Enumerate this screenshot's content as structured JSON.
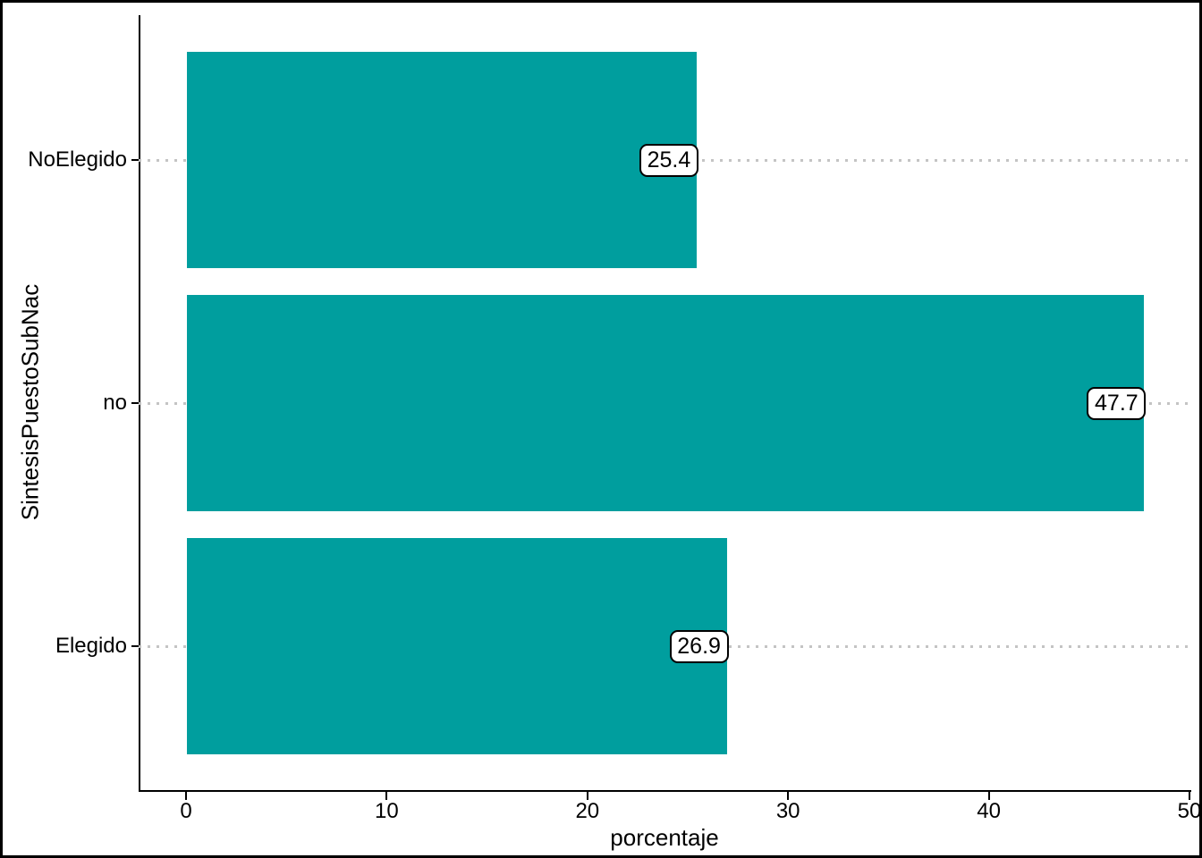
{
  "chart_data": {
    "type": "bar",
    "orientation": "horizontal",
    "title": "",
    "xlabel": "porcentaje",
    "ylabel": "SintesisPuestoSubNac",
    "xlim": [
      0,
      50
    ],
    "xticks": [
      0,
      10,
      20,
      30,
      40,
      50
    ],
    "grid": "dotted-horizontal-at-categories",
    "legend": "none",
    "bar_color": "#009E9E",
    "categories": [
      "NoElegido",
      "no",
      "Elegido"
    ],
    "values": [
      25.4,
      47.7,
      26.9
    ],
    "series": [
      {
        "category": "NoElegido",
        "value": 25.4,
        "value_label": "25.4"
      },
      {
        "category": "no",
        "value": 47.7,
        "value_label": "47.7"
      },
      {
        "category": "Elegido",
        "value": 26.9,
        "value_label": "26.9"
      }
    ]
  }
}
